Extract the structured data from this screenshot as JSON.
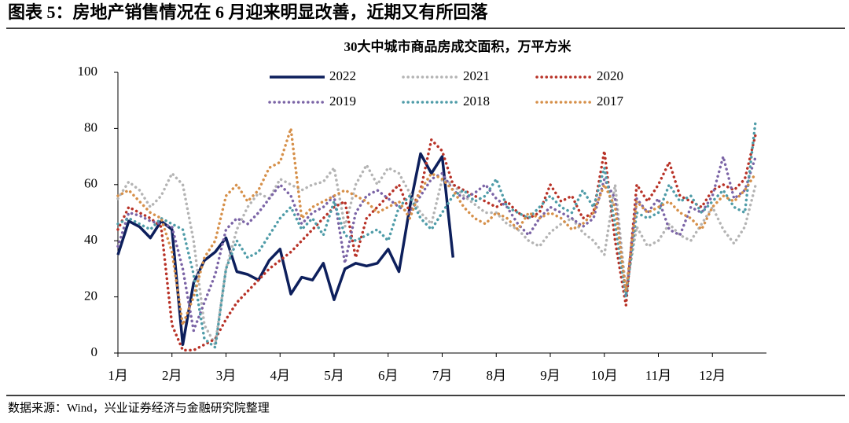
{
  "header": {
    "title": "图表 5：房地产销售情况在 6 月迎来明显改善，近期又有所回落"
  },
  "chart_data": {
    "type": "line",
    "title": "30大中城市商品房成交面积，万平方米",
    "categories": [
      "1月",
      null,
      null,
      null,
      null,
      "2月",
      null,
      null,
      null,
      null,
      "3月",
      null,
      null,
      null,
      null,
      "4月",
      null,
      null,
      null,
      null,
      "5月",
      null,
      null,
      null,
      null,
      "6月",
      null,
      null,
      null,
      null,
      "7月",
      null,
      null,
      null,
      null,
      "8月",
      null,
      null,
      null,
      null,
      "9月",
      null,
      null,
      null,
      null,
      "10月",
      null,
      null,
      null,
      null,
      "11月",
      null,
      null,
      null,
      null,
      "12月",
      null,
      null,
      null,
      null
    ],
    "ylim": [
      0,
      100
    ],
    "yticks": [
      0,
      20,
      40,
      60,
      80,
      100
    ],
    "grid": false,
    "legend": "top",
    "series": [
      {
        "name": "2022",
        "color": "#0d1f5c",
        "style": "solid",
        "values": [
          35,
          47,
          45,
          41,
          47,
          44,
          3,
          25,
          33,
          36,
          41,
          29,
          28,
          26,
          33,
          37,
          21,
          27,
          26,
          32,
          19,
          30,
          32,
          31,
          32,
          37,
          29,
          52,
          71,
          64,
          70,
          34,
          null,
          null,
          null,
          null,
          null,
          null,
          null,
          null,
          null,
          null,
          null,
          null,
          null,
          null,
          null,
          null,
          null,
          null,
          null,
          null,
          null,
          null,
          null,
          null,
          null,
          null,
          null,
          null
        ]
      },
      {
        "name": "2021",
        "color": "#b4b4b4",
        "style": "dotted",
        "values": [
          55,
          61,
          58,
          52,
          56,
          64,
          60,
          40,
          10,
          3,
          30,
          44,
          52,
          57,
          55,
          62,
          60,
          58,
          60,
          61,
          66,
          45,
          60,
          67,
          60,
          66,
          64,
          57,
          50,
          46,
          62,
          60,
          56,
          53,
          50,
          50,
          46,
          44,
          40,
          38,
          43,
          46,
          48,
          43,
          40,
          35,
          60,
          22,
          45,
          38,
          40,
          46,
          42,
          40,
          46,
          52,
          44,
          39,
          45,
          60
        ]
      },
      {
        "name": "2020",
        "color": "#b83227",
        "style": "dotted",
        "values": [
          44,
          52,
          50,
          48,
          45,
          10,
          1,
          1,
          3,
          5,
          12,
          18,
          22,
          26,
          30,
          33,
          36,
          40,
          44,
          48,
          52,
          54,
          34,
          48,
          52,
          56,
          60,
          50,
          58,
          76,
          72,
          60,
          58,
          56,
          54,
          52,
          54,
          50,
          48,
          50,
          60,
          54,
          56,
          48,
          50,
          72,
          40,
          17,
          60,
          54,
          60,
          68,
          56,
          54,
          52,
          58,
          60,
          58,
          62,
          78
        ]
      },
      {
        "name": "2019",
        "color": "#7b64a6",
        "style": "dotted",
        "values": [
          38,
          50,
          49,
          47,
          46,
          45,
          30,
          8,
          18,
          28,
          44,
          48,
          46,
          50,
          55,
          60,
          56,
          46,
          50,
          52,
          56,
          32,
          50,
          56,
          58,
          55,
          52,
          50,
          56,
          62,
          64,
          58,
          55,
          57,
          60,
          55,
          52,
          46,
          42,
          48,
          52,
          50,
          48,
          45,
          48,
          62,
          55,
          20,
          55,
          50,
          55,
          44,
          42,
          52,
          50,
          56,
          70,
          55,
          58,
          70
        ]
      },
      {
        "name": "2018",
        "color": "#4f9ca8",
        "style": "dotted",
        "values": [
          46,
          48,
          46,
          44,
          48,
          46,
          44,
          28,
          5,
          2,
          30,
          40,
          34,
          36,
          42,
          48,
          52,
          44,
          48,
          42,
          54,
          42,
          40,
          42,
          44,
          40,
          52,
          56,
          48,
          44,
          50,
          56,
          58,
          54,
          56,
          62,
          52,
          50,
          48,
          52,
          56,
          52,
          50,
          58,
          52,
          66,
          46,
          20,
          50,
          48,
          50,
          60,
          54,
          56,
          50,
          54,
          58,
          52,
          50,
          83
        ]
      },
      {
        "name": "2017",
        "color": "#d6904a",
        "style": "dotted",
        "values": [
          56,
          58,
          54,
          50,
          48,
          36,
          10,
          20,
          34,
          40,
          56,
          60,
          54,
          58,
          66,
          68,
          80,
          48,
          52,
          54,
          56,
          58,
          56,
          54,
          50,
          52,
          54,
          48,
          58,
          64,
          62,
          58,
          52,
          48,
          46,
          50,
          48,
          44,
          50,
          48,
          50,
          48,
          44,
          46,
          50,
          60,
          52,
          22,
          54,
          50,
          52,
          54,
          50,
          48,
          44,
          52,
          56,
          54,
          58,
          64
        ]
      }
    ]
  },
  "source": "数据来源：Wind，兴业证券经济与金融研究院整理"
}
